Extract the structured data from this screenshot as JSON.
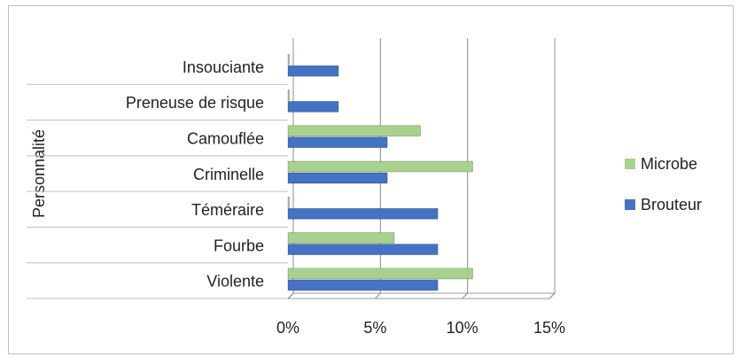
{
  "chart_data": {
    "type": "bar",
    "orientation": "horizontal",
    "y_label": "Personnalité",
    "categories": [
      "Insouciante",
      "Preneuse de risque",
      "Camouflée",
      "Criminelle",
      "Téméraire",
      "Fourbe",
      "Violente"
    ],
    "series": [
      {
        "name": "Microbe",
        "color": "#a9d18e",
        "values": [
          0,
          0,
          7.6,
          10.6,
          0,
          6.1,
          10.6
        ]
      },
      {
        "name": "Brouteur",
        "color": "#4472c4",
        "values": [
          2.9,
          2.9,
          5.7,
          5.7,
          8.6,
          8.6,
          8.6
        ]
      }
    ],
    "xlim": [
      0,
      15
    ],
    "xticks": [
      {
        "value": 0,
        "label": "0%"
      },
      {
        "value": 5,
        "label": "5%"
      },
      {
        "value": 10,
        "label": "10%"
      },
      {
        "value": 15,
        "label": "15%"
      }
    ],
    "grid": true,
    "legend": "right"
  }
}
